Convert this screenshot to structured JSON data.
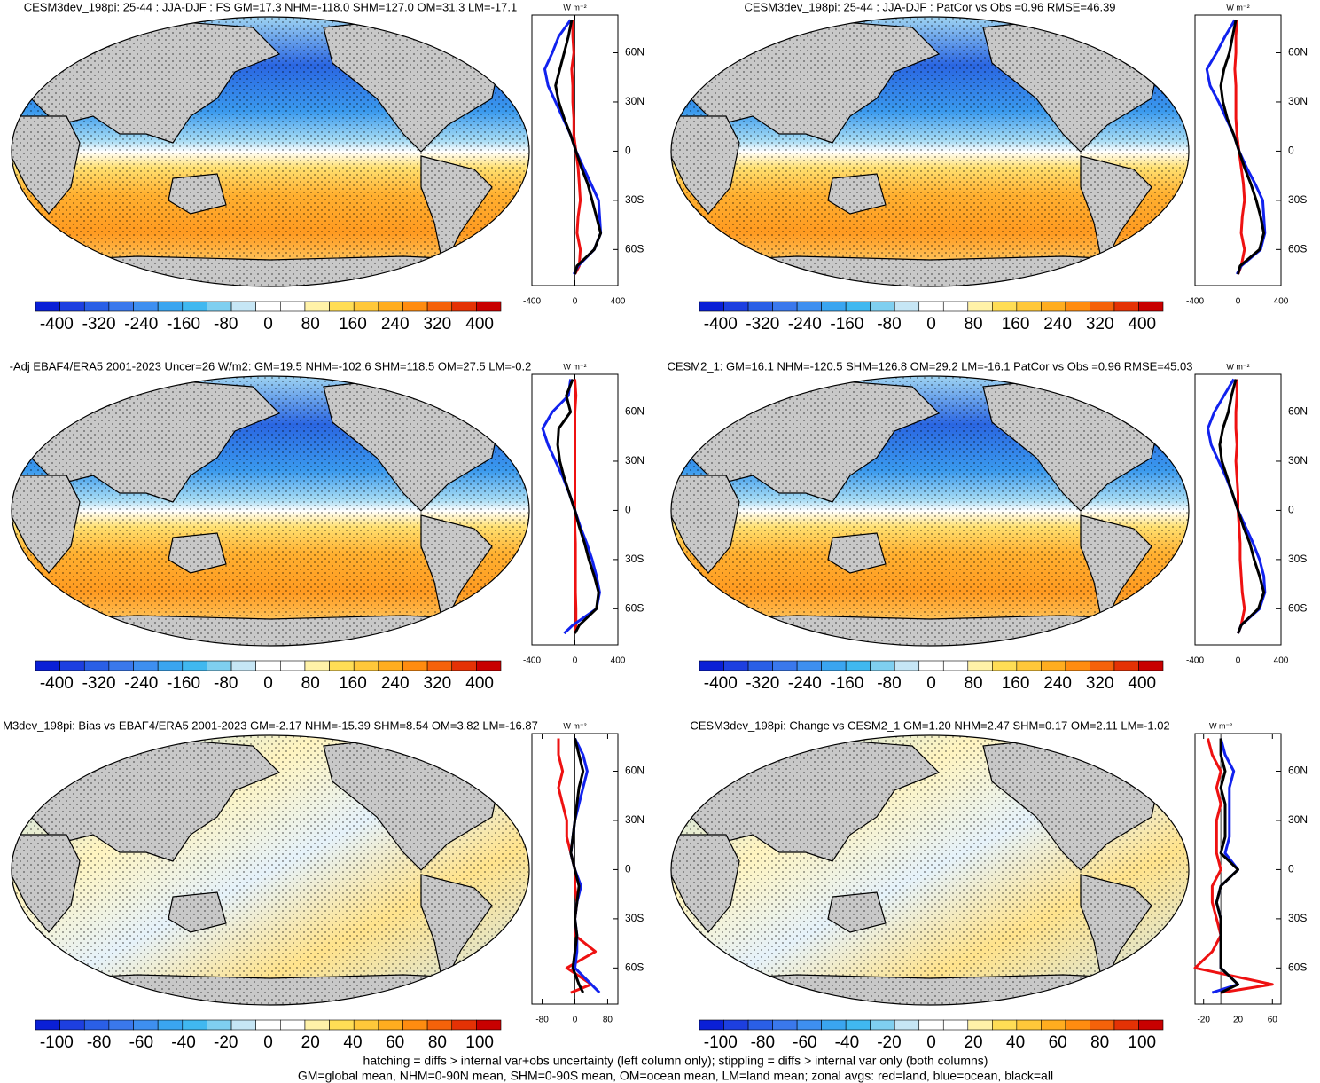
{
  "chart_data": [
    {
      "type": "zonal-map",
      "title": "CESM3dev_198pi: 25-44 : JJA-DJF : FS GM=17.3 NHM=-118.0 SHM=127.0 OM=31.3 LM=-17.1",
      "ylabel": "W m⁻²",
      "x": [
        -75,
        -70,
        -60,
        -50,
        -40,
        -30,
        -20,
        -10,
        0,
        10,
        20,
        30,
        40,
        50,
        60,
        70,
        80
      ],
      "xlim": [
        -82,
        83
      ],
      "xticks": [
        {
          "value": 60,
          "label": "60N"
        },
        {
          "value": 30,
          "label": "30N"
        },
        0,
        {
          "value": -30,
          "label": "30S"
        },
        {
          "value": -60,
          "label": "60S"
        }
      ],
      "ylim": [
        -400,
        400
      ],
      "yticks": [
        -400,
        0,
        400
      ],
      "series": [
        {
          "color": "#ee1111",
          "values": [
            0,
            40,
            50,
            20,
            30,
            50,
            40,
            30,
            10,
            -10,
            -10,
            -20,
            -20,
            -30,
            -10,
            -20,
            -20
          ]
        },
        {
          "color": "#1122ee",
          "values": [
            -10,
            30,
            180,
            240,
            230,
            220,
            150,
            80,
            10,
            -40,
            -110,
            -180,
            -250,
            -280,
            -210,
            -150,
            -40
          ]
        },
        {
          "color": "#000000",
          "values": [
            0,
            20,
            180,
            240,
            200,
            160,
            120,
            60,
            10,
            -40,
            -100,
            -150,
            -180,
            -140,
            -100,
            -60,
            -30
          ]
        }
      ],
      "colorbar": {
        "lim": [
          -440,
          440
        ],
        "ticks": [
          -400,
          -320,
          -240,
          -160,
          -80,
          0,
          80,
          160,
          240,
          320,
          400
        ]
      }
    },
    {
      "type": "zonal-map",
      "title": "CESM3dev_198pi: 25-44 : JJA-DJF : PatCor vs Obs =0.96 RMSE=46.39",
      "ylabel": "W m⁻²",
      "x": [
        -75,
        -70,
        -60,
        -50,
        -40,
        -30,
        -20,
        -10,
        0,
        10,
        20,
        30,
        40,
        50,
        60,
        70,
        80
      ],
      "xlim": [
        -82,
        83
      ],
      "xticks": [
        {
          "value": 60,
          "label": "60N"
        },
        {
          "value": 30,
          "label": "30N"
        },
        0,
        {
          "value": -30,
          "label": "30S"
        },
        {
          "value": -60,
          "label": "60S"
        }
      ],
      "ylim": [
        -400,
        400
      ],
      "yticks": [
        -400,
        0,
        400
      ],
      "series": [
        {
          "color": "#ee1111",
          "values": [
            0,
            30,
            60,
            30,
            40,
            60,
            50,
            30,
            10,
            -10,
            -20,
            -20,
            -20,
            -30,
            -20,
            -20,
            -10
          ]
        },
        {
          "color": "#1122ee",
          "values": [
            -10,
            30,
            210,
            250,
            240,
            230,
            160,
            80,
            10,
            -40,
            -110,
            -180,
            -260,
            -290,
            -200,
            -120,
            -30
          ]
        },
        {
          "color": "#000000",
          "values": [
            0,
            20,
            200,
            240,
            210,
            170,
            120,
            60,
            10,
            -40,
            -100,
            -140,
            -160,
            -130,
            -80,
            -50,
            -20
          ]
        }
      ],
      "colorbar": {
        "lim": [
          -440,
          440
        ],
        "ticks": [
          -400,
          -320,
          -240,
          -160,
          -80,
          0,
          80,
          160,
          240,
          320,
          400
        ]
      }
    },
    {
      "type": "zonal-map",
      "title": "-Adj EBAF4/ERA5 2001-2023 Uncer=26 W/m2: GM=19.5 NHM=-102.6 SHM=118.5 OM=27.5 LM=-0.2",
      "ylabel": "W m⁻²",
      "x": [
        -75,
        -70,
        -60,
        -50,
        -40,
        -30,
        -20,
        -10,
        0,
        10,
        20,
        30,
        40,
        50,
        60,
        70,
        80
      ],
      "xlim": [
        -82,
        83
      ],
      "xticks": [
        {
          "value": 60,
          "label": "60N"
        },
        {
          "value": 30,
          "label": "30N"
        },
        0,
        {
          "value": -30,
          "label": "30S"
        },
        {
          "value": -60,
          "label": "60S"
        }
      ],
      "ylim": [
        -400,
        400
      ],
      "yticks": [
        -400,
        0,
        400
      ],
      "series": [
        {
          "color": "#ee1111",
          "values": [
            0,
            10,
            10,
            5,
            5,
            5,
            5,
            0,
            0,
            0,
            0,
            0,
            0,
            0,
            0,
            10,
            0
          ]
        },
        {
          "color": "#1122ee",
          "values": [
            -100,
            -20,
            200,
            230,
            200,
            160,
            110,
            50,
            0,
            -50,
            -110,
            -180,
            -250,
            -300,
            -210,
            -60,
            -40
          ]
        },
        {
          "color": "#000000",
          "values": [
            0,
            40,
            200,
            220,
            180,
            130,
            90,
            40,
            0,
            -50,
            -100,
            -140,
            -160,
            -150,
            -40,
            -80,
            -20
          ]
        }
      ],
      "colorbar": {
        "lim": [
          -440,
          440
        ],
        "ticks": [
          -400,
          -320,
          -240,
          -160,
          -80,
          0,
          80,
          160,
          240,
          320,
          400
        ]
      }
    },
    {
      "type": "zonal-map",
      "title": "CESM2_1: GM=16.1 NHM=-120.5 SHM=126.8 OM=29.2 LM=-16.1 PatCor vs Obs =0.96 RMSE=45.03",
      "ylabel": "W m⁻²",
      "x": [
        -75,
        -70,
        -60,
        -50,
        -40,
        -30,
        -20,
        -10,
        0,
        10,
        20,
        30,
        40,
        50,
        60,
        70,
        80
      ],
      "xlim": [
        -82,
        83
      ],
      "xticks": [
        {
          "value": 60,
          "label": "60N"
        },
        {
          "value": 30,
          "label": "30N"
        },
        0,
        {
          "value": -30,
          "label": "30S"
        },
        {
          "value": -60,
          "label": "60S"
        }
      ],
      "ylim": [
        -400,
        400
      ],
      "yticks": [
        -400,
        0,
        400
      ],
      "series": [
        {
          "color": "#ee1111",
          "values": [
            0,
            30,
            60,
            40,
            30,
            20,
            20,
            10,
            0,
            0,
            -10,
            -20,
            -10,
            -20,
            -20,
            -10,
            -10
          ]
        },
        {
          "color": "#1122ee",
          "values": [
            0,
            30,
            200,
            250,
            240,
            200,
            140,
            70,
            0,
            -50,
            -110,
            -180,
            -250,
            -280,
            -220,
            -130,
            -40
          ]
        },
        {
          "color": "#000000",
          "values": [
            0,
            30,
            190,
            240,
            200,
            150,
            110,
            50,
            0,
            -50,
            -100,
            -150,
            -170,
            -140,
            -90,
            -60,
            -20
          ]
        }
      ],
      "colorbar": {
        "lim": [
          -440,
          440
        ],
        "ticks": [
          -400,
          -320,
          -240,
          -160,
          -80,
          0,
          80,
          160,
          240,
          320,
          400
        ]
      }
    },
    {
      "type": "zonal-map",
      "title": "M3dev_198pi: Bias vs EBAF4/ERA5 2001-2023 GM=-2.17 NHM=-15.39 SHM=8.54 OM=3.82 LM=-16.87",
      "ylabel": "W m⁻²",
      "x": [
        -75,
        -70,
        -60,
        -50,
        -40,
        -30,
        -20,
        -10,
        0,
        10,
        20,
        30,
        40,
        50,
        60,
        70,
        80
      ],
      "xlim": [
        -82,
        83
      ],
      "xticks": [
        {
          "value": 60,
          "label": "60N"
        },
        {
          "value": 30,
          "label": "30N"
        },
        0,
        {
          "value": -30,
          "label": "30S"
        },
        {
          "value": -60,
          "label": "60S"
        }
      ],
      "ylim": [
        -105,
        105
      ],
      "yticks": [
        -80,
        0,
        80
      ],
      "series": [
        {
          "color": "#ee1111",
          "values": [
            -10,
            40,
            -20,
            50,
            0,
            0,
            5,
            0,
            0,
            -10,
            -20,
            -20,
            -30,
            -40,
            -30,
            -40,
            -40
          ]
        },
        {
          "color": "#1122ee",
          "values": [
            60,
            40,
            0,
            5,
            5,
            0,
            5,
            15,
            0,
            -10,
            -5,
            0,
            10,
            20,
            30,
            20,
            0
          ]
        },
        {
          "color": "#000000",
          "values": [
            20,
            10,
            -5,
            0,
            5,
            0,
            5,
            10,
            0,
            -10,
            -5,
            0,
            5,
            10,
            20,
            10,
            0
          ]
        }
      ],
      "colorbar": {
        "lim": [
          -110,
          110
        ],
        "ticks": [
          -100,
          -80,
          -60,
          -40,
          -20,
          0,
          20,
          40,
          60,
          80,
          100
        ]
      }
    },
    {
      "type": "zonal-map",
      "title": "CESM3dev_198pi: Change vs CESM2_1 GM=1.20 NHM=2.47 SHM=0.17 OM=2.11 LM=-1.02",
      "ylabel": "W m⁻²",
      "x": [
        -75,
        -70,
        -60,
        -50,
        -40,
        -30,
        -20,
        -10,
        0,
        10,
        20,
        30,
        40,
        50,
        60,
        70,
        80
      ],
      "xlim": [
        -82,
        83
      ],
      "xticks": [
        {
          "value": 60,
          "label": "60N"
        },
        {
          "value": 30,
          "label": "30N"
        },
        0,
        {
          "value": -30,
          "label": "30S"
        },
        {
          "value": -60,
          "label": "60S"
        }
      ],
      "ylim": [
        -30,
        70
      ],
      "yticks": [
        -20,
        20,
        60
      ],
      "series": [
        {
          "color": "#ee1111",
          "values": [
            0,
            60,
            -30,
            -10,
            0,
            -5,
            -10,
            -10,
            0,
            -5,
            -5,
            -5,
            0,
            -5,
            0,
            -10,
            -15
          ]
        },
        {
          "color": "#1122ee",
          "values": [
            -10,
            20,
            0,
            0,
            0,
            0,
            -5,
            0,
            20,
            5,
            10,
            10,
            10,
            10,
            15,
            5,
            0
          ]
        },
        {
          "color": "#000000",
          "values": [
            0,
            20,
            0,
            0,
            0,
            0,
            -5,
            0,
            20,
            0,
            5,
            5,
            5,
            0,
            5,
            0,
            0
          ]
        }
      ],
      "colorbar": {
        "lim": [
          -110,
          110
        ],
        "ticks": [
          -100,
          -80,
          -60,
          -40,
          -20,
          0,
          20,
          40,
          60,
          80,
          100
        ]
      }
    }
  ],
  "colorbar_colors": [
    "#0a1fd6",
    "#1d3fe0",
    "#2a5fe6",
    "#3a78ec",
    "#3e8ff0",
    "#3aa5f0",
    "#40b8f0",
    "#7fcff0",
    "#c6e6f5",
    "#ffffff",
    "#ffffff",
    "#fff2a8",
    "#ffdd55",
    "#ffc83a",
    "#ffad1f",
    "#ff8c10",
    "#f5620a",
    "#e43205",
    "#c80000"
  ],
  "footer": [
    "hatching = diffs > internal var+obs uncertainty (left column only); stippling = diffs > internal var only (both columns)",
    "GM=global mean, NHM=0-90N mean, SHM=0-90S mean, OM=ocean mean, LM=land mean; zonal avgs: red=land, blue=ocean, black=all"
  ]
}
